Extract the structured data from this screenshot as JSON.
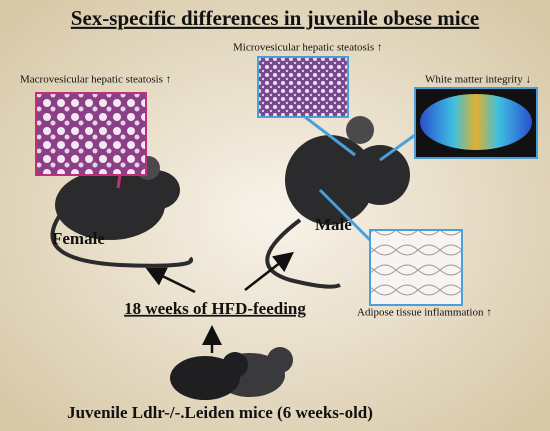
{
  "header": {
    "title": "Sex-specific differences in juvenile obese mice"
  },
  "labels": {
    "macro": "Macrovesicular hepatic steatosis ↑",
    "micro": "Microvesicular hepatic steatosis ↑",
    "white_matter": "White matter integrity ↓",
    "adipose": "Adipose tissue inflammation ↑"
  },
  "groups": {
    "female": "Female",
    "male": "Male"
  },
  "treatment": "18 weeks of HFD-feeding",
  "starting": "Juvenile Ldlr-/-.Leiden mice (6 weeks-old)"
}
